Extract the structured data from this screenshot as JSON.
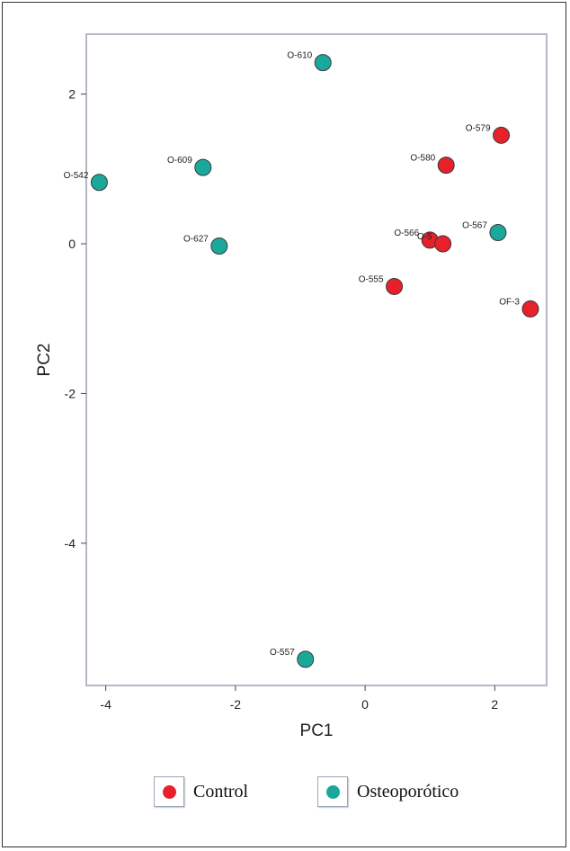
{
  "chart_data": {
    "type": "scatter",
    "xlabel": "PC1",
    "ylabel": "PC2",
    "xlim": [
      -4.3,
      2.8
    ],
    "ylim": [
      -5.9,
      2.8
    ],
    "x_ticks": [
      -4,
      -2,
      0,
      2
    ],
    "y_ticks": [
      2,
      0,
      -2,
      -4
    ],
    "grid": false,
    "legend_position": "bottom",
    "series": [
      {
        "name": "Control",
        "color": "#e8202a",
        "points": [
          {
            "label": "O-579",
            "x": 2.1,
            "y": 1.45
          },
          {
            "label": "O-580",
            "x": 1.25,
            "y": 1.05
          },
          {
            "label": "O-566",
            "x": 1.0,
            "y": 0.05
          },
          {
            "label": "O-5",
            "x": 1.2,
            "y": 0.0
          },
          {
            "label": "O-555",
            "x": 0.45,
            "y": -0.57
          },
          {
            "label": "OF-3",
            "x": 2.55,
            "y": -0.87
          }
        ]
      },
      {
        "name": "Osteoporótico",
        "color": "#1aa89a",
        "points": [
          {
            "label": "O-610",
            "x": -0.65,
            "y": 2.42
          },
          {
            "label": "O-542",
            "x": -4.1,
            "y": 0.82
          },
          {
            "label": "O-609",
            "x": -2.5,
            "y": 1.02
          },
          {
            "label": "O-627",
            "x": -2.25,
            "y": -0.03
          },
          {
            "label": "O-567",
            "x": 2.05,
            "y": 0.15
          },
          {
            "label": "O-557",
            "x": -0.92,
            "y": -5.55
          }
        ]
      }
    ]
  }
}
